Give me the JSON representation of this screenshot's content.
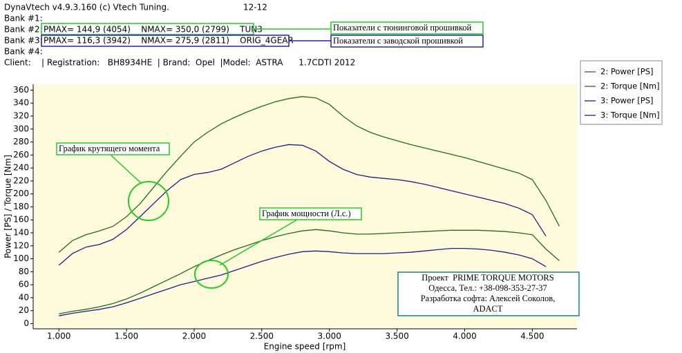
{
  "header": {
    "app": "DynaVtech v4.9.3.160 (c) Vtech Tuning.",
    "date": "12-12",
    "banks": [
      {
        "label": "Bank #1:"
      },
      {
        "label": "Bank #2:",
        "info": "PMAX= 144,9 (4054)    NMAX= 350,0 (2799)    TUN3"
      },
      {
        "label": "Bank #3:",
        "info": "PMAX= 116,3 (3942)    NMAX= 275,9 (2811)    ORIG_4GEAR"
      },
      {
        "label": "Bank #4:"
      }
    ],
    "client": "Client:    | Registration:   BH8934HE  | Brand:  Opel  |Model:  ASTRA      1.7CDTI 2012"
  },
  "annotations": {
    "tuned": "Показатели с тюнинговой прошивкой",
    "stock": "Показатели с заводской прошивкой",
    "torque_curve": "График крутящего момента",
    "power_curve": "График мощности (Л.с.)"
  },
  "info_box": [
    "Проект  PRIME TORQUE MOTORS",
    "Одесса, Тел.: +38-098-353-27-37",
    "Разработка софта: Алексей Соколов,",
    "ADACT"
  ],
  "chart_data": {
    "type": "line",
    "x_label": "Engine speed [rpm]",
    "y_label": "Power [PS] / Torque [Nm]",
    "plot_background": "#fdfbdc",
    "x": [
      1000,
      1100,
      1200,
      1300,
      1400,
      1500,
      1600,
      1700,
      1800,
      1900,
      2000,
      2100,
      2200,
      2300,
      2400,
      2500,
      2600,
      2700,
      2800,
      2900,
      3000,
      3100,
      3200,
      3300,
      3400,
      3500,
      3600,
      3700,
      3800,
      3900,
      4000,
      4100,
      4200,
      4300,
      4400,
      4500,
      4600,
      4700
    ],
    "xlim": [
      810,
      4830
    ],
    "xticks": [
      {
        "value": 1000,
        "label": "1.000"
      },
      {
        "value": 1500,
        "label": "1.500"
      },
      {
        "value": 2000,
        "label": "2.000"
      },
      {
        "value": 2500,
        "label": "2.500"
      },
      {
        "value": 3000,
        "label": "3.000"
      },
      {
        "value": 3500,
        "label": "3.500"
      },
      {
        "value": 4000,
        "label": "4.000"
      },
      {
        "value": 4500,
        "label": "4.500"
      }
    ],
    "ylim": [
      -8,
      369
    ],
    "yticks": [
      0,
      20,
      40,
      60,
      80,
      100,
      120,
      140,
      160,
      180,
      200,
      220,
      240,
      260,
      280,
      300,
      320,
      340,
      360
    ],
    "series": [
      {
        "name": "2: Power [PS]",
        "color": "#1c6e1c",
        "values": [
          15,
          19,
          22,
          26,
          31,
          38,
          47,
          57,
          67,
          77,
          88,
          97,
          106,
          114,
          121,
          128,
          134,
          139,
          143,
          145,
          143,
          140,
          138,
          138,
          139,
          140,
          141,
          142,
          143,
          144,
          144,
          144,
          143,
          142,
          140,
          137,
          115,
          97
        ]
      },
      {
        "name": "2: Torque [Nm]",
        "color": "#1c6e1c",
        "values": [
          110,
          128,
          137,
          143,
          150,
          165,
          185,
          210,
          235,
          258,
          280,
          295,
          308,
          318,
          327,
          335,
          342,
          347,
          350,
          348,
          338,
          320,
          305,
          295,
          288,
          282,
          276,
          271,
          266,
          261,
          256,
          250,
          244,
          238,
          232,
          222,
          190,
          150
        ]
      },
      {
        "name": "3: Power [PS]",
        "color": "#1c1c8c",
        "values": [
          12,
          16,
          19,
          22,
          26,
          32,
          39,
          46,
          53,
          60,
          65,
          70,
          75,
          82,
          89,
          96,
          102,
          107,
          111,
          112,
          111,
          109,
          108,
          108,
          108,
          109,
          110,
          112,
          114,
          116,
          116,
          115,
          113,
          110,
          106,
          100,
          88,
          null
        ]
      },
      {
        "name": "3: Torque [Nm]",
        "color": "#1c1c8c",
        "values": [
          90,
          108,
          118,
          122,
          130,
          145,
          165,
          185,
          205,
          222,
          230,
          233,
          238,
          248,
          258,
          266,
          272,
          276,
          275,
          266,
          250,
          238,
          230,
          226,
          224,
          222,
          219,
          215,
          210,
          205,
          200,
          195,
          190,
          185,
          178,
          168,
          135,
          null
        ]
      }
    ]
  }
}
